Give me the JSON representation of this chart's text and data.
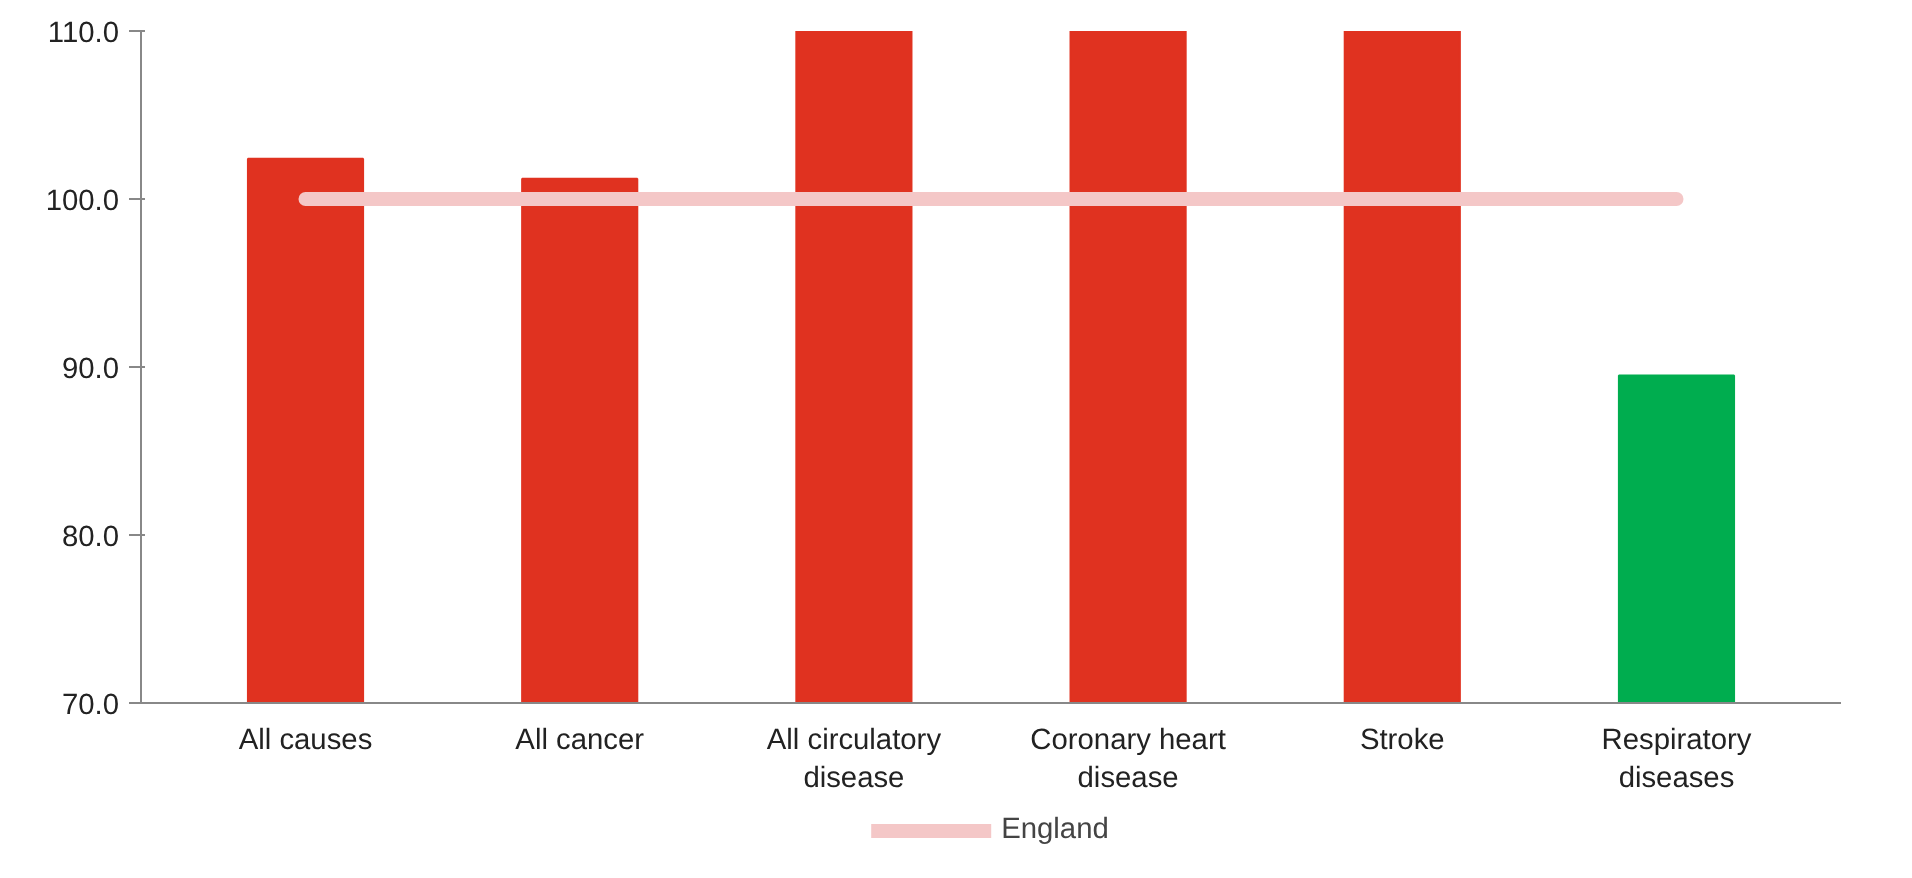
{
  "chart_data": {
    "type": "bar",
    "categories": [
      "All causes",
      "All cancer",
      "All circulatory\ndisease",
      "Coronary heart\ndisease",
      "Stroke",
      "Respiratory\ndiseases"
    ],
    "series": [
      {
        "colors": [
          "#e03220",
          "#e03220",
          "#e03220",
          "#e03220",
          "#e03220",
          "#00ad4f"
        ],
        "values": [
          102.4,
          101.2,
          110,
          110,
          110,
          89.5
        ]
      },
      {
        "type": "line",
        "name": "England",
        "color": "#f4c7c7",
        "values": [
          100,
          100,
          100,
          100,
          100,
          100
        ]
      }
    ],
    "ylim": [
      70,
      110
    ],
    "yticks": [
      {
        "value": 70,
        "label": "70.0"
      },
      {
        "value": 80,
        "label": "80.0"
      },
      {
        "value": 90,
        "label": "90.0"
      },
      {
        "value": 100,
        "label": "100.0"
      },
      {
        "value": 110,
        "label": "110.0"
      }
    ],
    "legend": "bottom",
    "grid": false
  }
}
